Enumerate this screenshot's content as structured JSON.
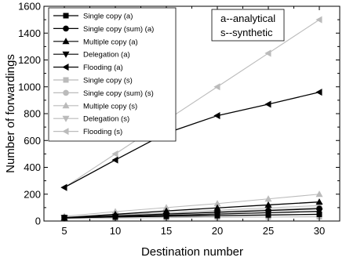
{
  "chart_data": {
    "type": "line",
    "xlabel": "Destination number",
    "ylabel": "Number of forwardings",
    "xlim": [
      3,
      32
    ],
    "ylim": [
      0,
      1600
    ],
    "xticks": [
      5,
      10,
      15,
      20,
      25,
      30
    ],
    "yticks": [
      0,
      200,
      400,
      600,
      800,
      1000,
      1200,
      1400,
      1600
    ],
    "x": [
      5,
      10,
      15,
      20,
      25,
      30
    ],
    "legend_position": "top-left",
    "annotation": [
      "a--analytical",
      "s--synthetic"
    ],
    "series": [
      {
        "name": "Single copy (a)",
        "marker": "square",
        "color": "#000000",
        "values": [
          25,
          30,
          35,
          40,
          45,
          50
        ]
      },
      {
        "name": "Single copy (sum) (a)",
        "marker": "circle",
        "color": "#000000",
        "values": [
          25,
          38,
          52,
          65,
          78,
          92
        ]
      },
      {
        "name": "Multiple copy (a)",
        "marker": "triangle-up",
        "color": "#000000",
        "values": [
          25,
          50,
          75,
          98,
          120,
          142
        ]
      },
      {
        "name": "Delegation (a)",
        "marker": "triangle-down",
        "color": "#000000",
        "values": [
          22,
          32,
          42,
          52,
          62,
          72
        ]
      },
      {
        "name": "Flooding (a)",
        "marker": "triangle-left",
        "color": "#000000",
        "values": [
          250,
          455,
          655,
          785,
          870,
          960
        ]
      },
      {
        "name": "Single copy (s)",
        "marker": "square",
        "color": "#bbbbbb",
        "values": [
          20,
          22,
          25,
          28,
          30,
          32
        ]
      },
      {
        "name": "Single copy (sum) (s)",
        "marker": "circle",
        "color": "#bbbbbb",
        "values": [
          25,
          40,
          55,
          70,
          85,
          100
        ]
      },
      {
        "name": "Multiple copy (s)",
        "marker": "triangle-up",
        "color": "#bbbbbb",
        "values": [
          35,
          70,
          100,
          130,
          165,
          200
        ]
      },
      {
        "name": "Delegation (s)",
        "marker": "triangle-down",
        "color": "#bbbbbb",
        "values": [
          28,
          45,
          62,
          80,
          98,
          115
        ]
      },
      {
        "name": "Flooding (s)",
        "marker": "triangle-left",
        "color": "#bbbbbb",
        "values": [
          250,
          500,
          750,
          1000,
          1250,
          1500
        ]
      }
    ]
  }
}
